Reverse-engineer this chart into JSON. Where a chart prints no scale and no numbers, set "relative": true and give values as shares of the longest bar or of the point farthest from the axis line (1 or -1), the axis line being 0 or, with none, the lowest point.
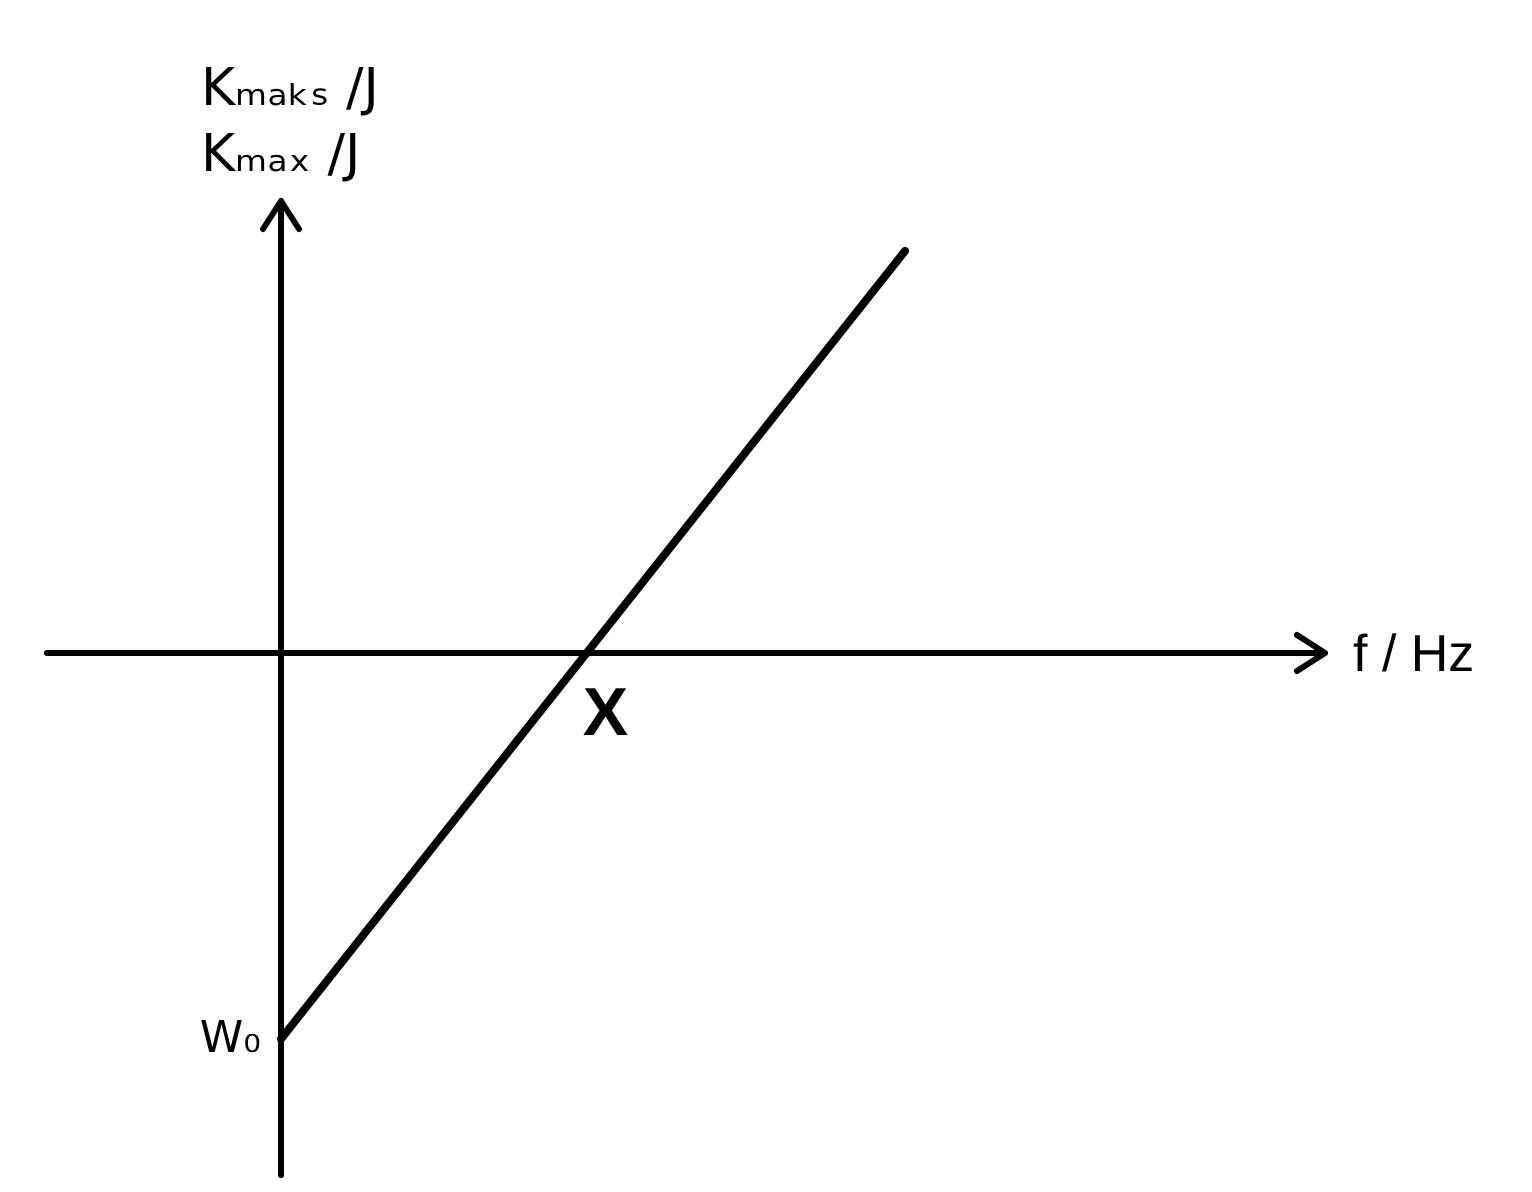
{
  "chart_data": {
    "type": "line",
    "relative": true,
    "xlabel": "f / Hz",
    "ylabel": "Kₘₐₖₛ /J\nKₘₐₓ /J",
    "categories": [
      null,
      null
    ],
    "series": [
      {
        "color": "#000000",
        "values": [
          -0.96,
          1
        ]
      }
    ],
    "annotations": [
      "W₀",
      "X"
    ]
  }
}
